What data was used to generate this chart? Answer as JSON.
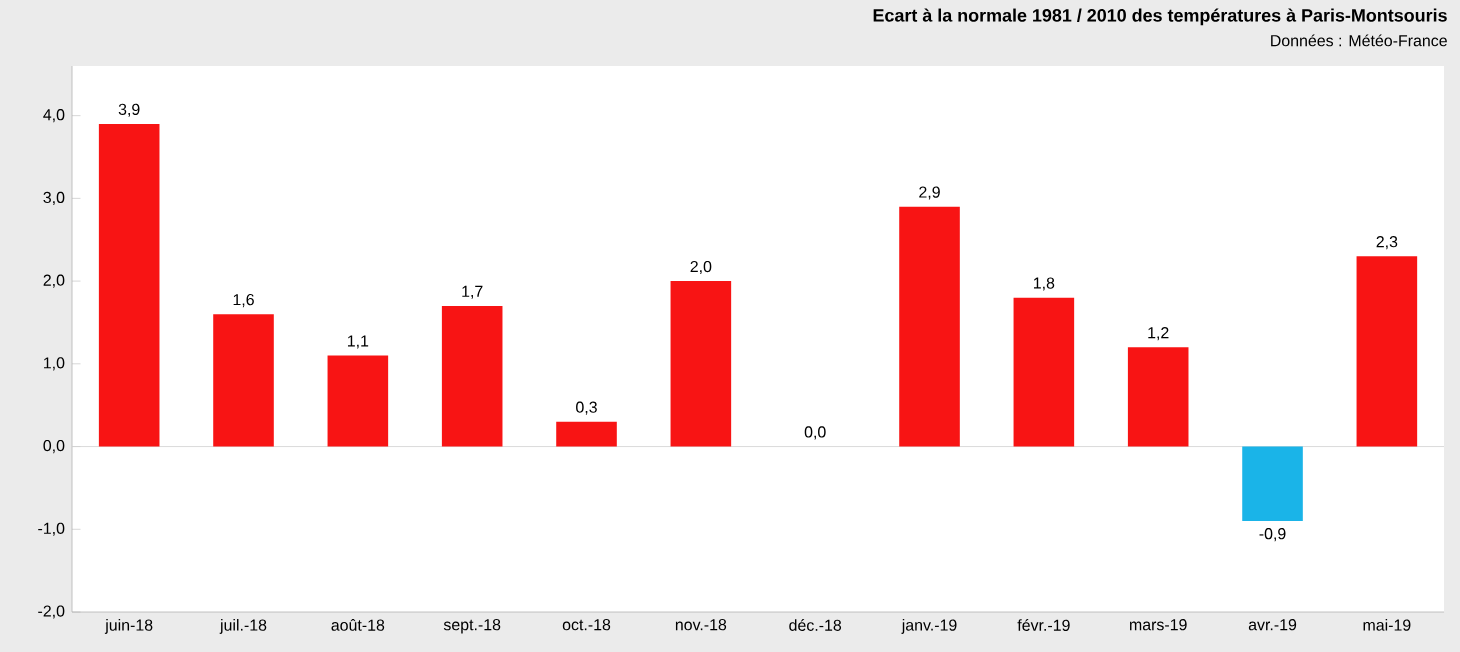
{
  "chart_data": {
    "type": "bar",
    "title": "Ecart à la normale 1981 / 2010 des températures à Paris-Montsouris",
    "subtitle": "Données : Météo-France",
    "categories": [
      "juin-18",
      "juil.-18",
      "août-18",
      "sept.-18",
      "oct.-18",
      "nov.-18",
      "déc.-18",
      "janv.-19",
      "févr.-19",
      "mars-19",
      "avr.-19",
      "mai-19"
    ],
    "values": [
      3.9,
      1.6,
      1.1,
      1.7,
      0.3,
      2.0,
      0.0,
      2.9,
      1.8,
      1.2,
      -0.9,
      2.3
    ],
    "colors": [
      "#f81414",
      "#f81414",
      "#f81414",
      "#f81414",
      "#f81414",
      "#f81414",
      "#f81414",
      "#f81414",
      "#f81414",
      "#f81414",
      "#1ab4e8",
      "#f81414"
    ],
    "value_labels": [
      "3,9",
      "1,6",
      "1,1",
      "1,7",
      "0,3",
      "2,0",
      "0,0",
      "2,9",
      "1,8",
      "1,2",
      "-0,9",
      "2,3"
    ],
    "ylim": [
      -2,
      4.6
    ],
    "yticks": [
      {
        "value": -2,
        "label": "-2,0"
      },
      {
        "value": -1,
        "label": "-1,0"
      },
      {
        "value": 0,
        "label": "0,0"
      },
      {
        "value": 1,
        "label": "1,0"
      },
      {
        "value": 2,
        "label": "2,0"
      },
      {
        "value": 3,
        "label": "3,0"
      },
      {
        "value": 4,
        "label": "4,0"
      }
    ],
    "ref_lines": [
      {
        "axis": "y",
        "value": 0,
        "color": "#d0d0d0"
      }
    ]
  }
}
